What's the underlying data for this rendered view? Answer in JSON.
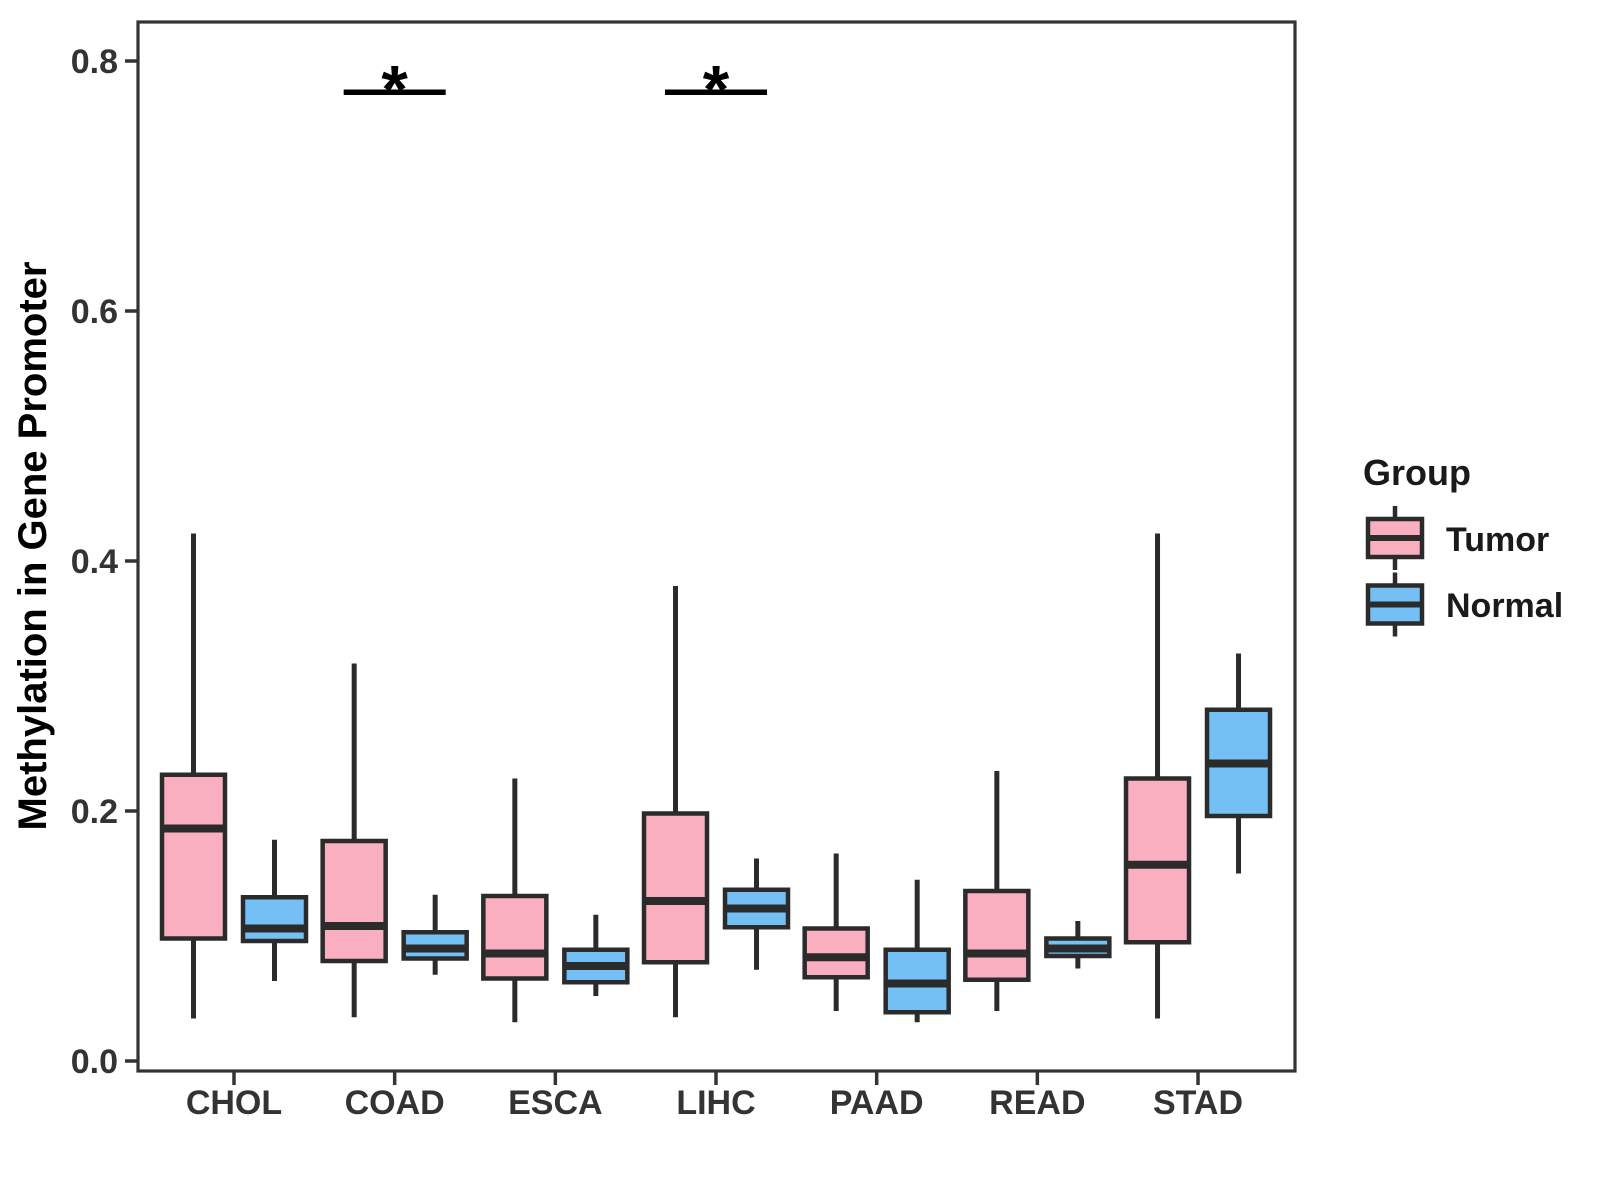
{
  "figure": {
    "background": "#ffffff"
  },
  "chart_data": {
    "type": "boxplot",
    "title": "",
    "xlabel": "",
    "ylabel": "Methylation in Gene Promoter",
    "categories": [
      "CHOL",
      "COAD",
      "ESCA",
      "LIHC",
      "PAAD",
      "READ",
      "STAD"
    ],
    "y_ticks": [
      0.0,
      0.2,
      0.4,
      0.6,
      0.8
    ],
    "y_tick_labels": [
      "0.0",
      "0.2",
      "0.4",
      "0.6",
      "0.8"
    ],
    "ylim": [
      0.0,
      0.84
    ],
    "grid": false,
    "legend": {
      "title": "Group",
      "position": "right",
      "entries": [
        {
          "label": "Tumor",
          "color": "#FAAFC1"
        },
        {
          "label": "Normal",
          "color": "#74BFF4"
        }
      ]
    },
    "series": [
      {
        "name": "Tumor",
        "color": "#FAAFC1",
        "boxes": [
          {
            "category": "CHOL",
            "min": 0.034,
            "q1": 0.098,
            "median": 0.186,
            "q3": 0.229,
            "max": 0.422
          },
          {
            "category": "COAD",
            "min": 0.035,
            "q1": 0.08,
            "median": 0.108,
            "q3": 0.176,
            "max": 0.318
          },
          {
            "category": "ESCA",
            "min": 0.031,
            "q1": 0.066,
            "median": 0.086,
            "q3": 0.132,
            "max": 0.226
          },
          {
            "category": "LIHC",
            "min": 0.035,
            "q1": 0.079,
            "median": 0.128,
            "q3": 0.198,
            "max": 0.38
          },
          {
            "category": "PAAD",
            "min": 0.04,
            "q1": 0.067,
            "median": 0.083,
            "q3": 0.106,
            "max": 0.166
          },
          {
            "category": "READ",
            "min": 0.04,
            "q1": 0.065,
            "median": 0.086,
            "q3": 0.136,
            "max": 0.232
          },
          {
            "category": "STAD",
            "min": 0.034,
            "q1": 0.095,
            "median": 0.157,
            "q3": 0.226,
            "max": 0.422
          }
        ]
      },
      {
        "name": "Normal",
        "color": "#74BFF4",
        "boxes": [
          {
            "category": "CHOL",
            "min": 0.064,
            "q1": 0.096,
            "median": 0.106,
            "q3": 0.131,
            "max": 0.177
          },
          {
            "category": "COAD",
            "min": 0.069,
            "q1": 0.082,
            "median": 0.09,
            "q3": 0.103,
            "max": 0.133
          },
          {
            "category": "ESCA",
            "min": 0.052,
            "q1": 0.063,
            "median": 0.076,
            "q3": 0.089,
            "max": 0.117
          },
          {
            "category": "LIHC",
            "min": 0.073,
            "q1": 0.107,
            "median": 0.122,
            "q3": 0.137,
            "max": 0.162
          },
          {
            "category": "PAAD",
            "min": 0.031,
            "q1": 0.039,
            "median": 0.062,
            "q3": 0.089,
            "max": 0.145
          },
          {
            "category": "READ",
            "min": 0.074,
            "q1": 0.084,
            "median": 0.09,
            "q3": 0.098,
            "max": 0.112
          },
          {
            "category": "STAD",
            "min": 0.15,
            "q1": 0.196,
            "median": 0.238,
            "q3": 0.281,
            "max": 0.326
          }
        ]
      }
    ],
    "significance": [
      {
        "category": "COAD",
        "label": "*",
        "bar_value": 0.775
      },
      {
        "category": "LIHC",
        "label": "*",
        "bar_value": 0.775
      }
    ],
    "colors": {
      "box_stroke": "#2B2B2B",
      "panel_border": "#333333",
      "tick_text": "#333333",
      "axis_title_text": "#000000",
      "legend_text": "#1A1A1A",
      "significance": "#000000"
    }
  }
}
